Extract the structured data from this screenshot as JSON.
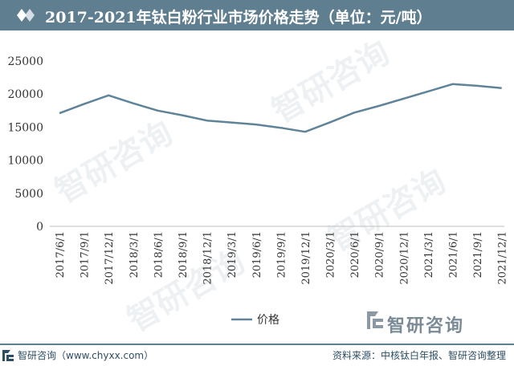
{
  "header": {
    "title": "2017-2021年钛白粉行业市场价格走势（单位：元/吨）"
  },
  "chart_data": {
    "type": "line",
    "categories": [
      "2017/6/1",
      "2017/9/1",
      "2017/12/1",
      "2018/3/1",
      "2018/6/1",
      "2018/9/1",
      "2018/12/1",
      "2019/3/1",
      "2019/6/1",
      "2019/9/1",
      "2019/12/1",
      "2020/3/1",
      "2020/6/1",
      "2020/9/1",
      "2020/12/1",
      "2021/3/1",
      "2021/6/1",
      "2021/9/1",
      "2021/12/1"
    ],
    "series": [
      {
        "name": "价格",
        "values": [
          17100,
          18500,
          19800,
          18600,
          17500,
          16800,
          16000,
          15700,
          15400,
          14900,
          14300,
          15700,
          17200,
          18200,
          19300,
          20400,
          21500,
          21250,
          20900
        ]
      }
    ],
    "ylim": [
      0,
      25000
    ],
    "yticks": [
      0,
      5000,
      10000,
      15000,
      20000,
      25000
    ],
    "legend": "bottom-center",
    "grid": false,
    "line_color": "#5f8499"
  },
  "watermark": {
    "brand": "智研咨询"
  },
  "footer": {
    "brand": "智研咨询（www.chyxx.com）",
    "source": "资料来源：中核钛白年报、智研咨询整理"
  }
}
